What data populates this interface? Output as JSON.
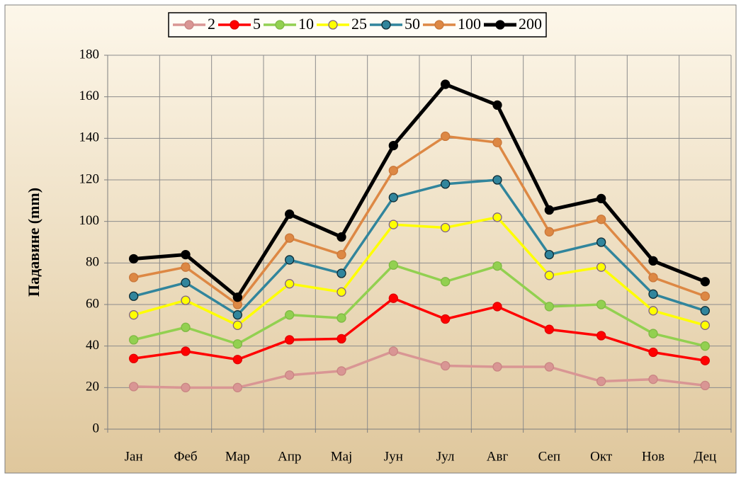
{
  "chart_data": {
    "type": "line",
    "y_label": "Падавине (mm)",
    "categories": [
      "Јан",
      "Феб",
      "Мар",
      "Апр",
      "Мај",
      "Јун",
      "Јул",
      "Авг",
      "Сеп",
      "Окт",
      "Нов",
      "Дец"
    ],
    "series": [
      {
        "name": "2",
        "color": "#d99694",
        "marker_edge": "#c98583",
        "values": [
          20.5,
          20,
          20,
          26,
          28,
          37.5,
          30.5,
          30,
          30,
          23,
          24,
          21
        ]
      },
      {
        "name": "5",
        "color": "#ff0000",
        "marker_edge": "#e00000",
        "values": [
          34,
          37.5,
          33.5,
          43,
          43.5,
          63,
          53,
          59,
          48,
          45,
          37,
          33
        ]
      },
      {
        "name": "10",
        "color": "#92d050",
        "marker_edge": "#7fb844",
        "values": [
          43,
          49,
          41,
          55,
          53.5,
          79,
          71,
          78.5,
          59,
          60,
          46,
          40
        ]
      },
      {
        "name": "25",
        "color": "#ffff00",
        "marker_edge": "#7f6084",
        "values": [
          55,
          62,
          50,
          70,
          66,
          98.5,
          97,
          102,
          74,
          78,
          57,
          50
        ]
      },
      {
        "name": "50",
        "color": "#31859c",
        "marker_edge": "#0d2a33",
        "values": [
          64,
          70.5,
          55,
          81.5,
          75,
          111.5,
          118,
          120,
          84,
          90,
          65,
          57
        ]
      },
      {
        "name": "100",
        "color": "#dd8844",
        "marker_edge": "#c9773a",
        "values": [
          73,
          78,
          60,
          92,
          84,
          124.5,
          141,
          138,
          95,
          101,
          73,
          64
        ]
      },
      {
        "name": "200",
        "color": "#000000",
        "marker_edge": "#000000",
        "values": [
          82,
          84,
          63.5,
          103.5,
          92.5,
          136.5,
          166,
          156,
          105.5,
          111,
          81,
          71
        ]
      }
    ],
    "ylim": [
      0,
      180
    ],
    "yticks": [
      0,
      20,
      40,
      60,
      80,
      100,
      120,
      140,
      160,
      180
    ],
    "grid": true,
    "legend": "top"
  }
}
